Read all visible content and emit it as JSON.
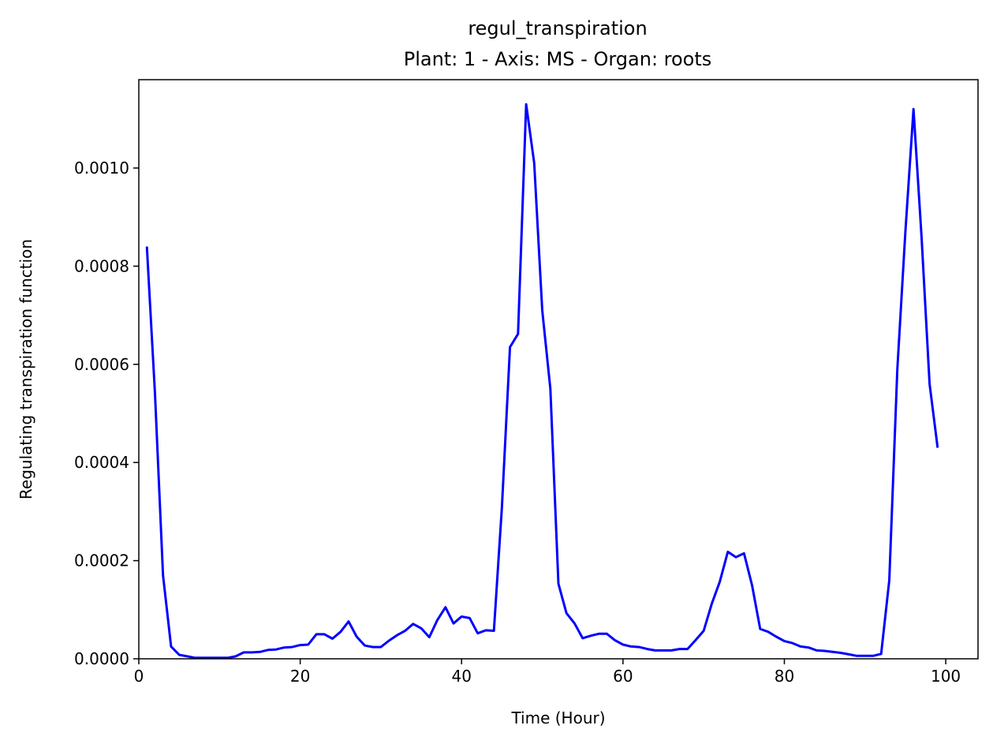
{
  "chart_data": {
    "type": "line",
    "title": "regul_transpiration",
    "subtitle": "Plant: 1 - Axis: MS - Organ: roots",
    "xlabel": "Time (Hour)",
    "ylabel": "Regulating transpiration function",
    "xlim": [
      0,
      104
    ],
    "ylim": [
      0,
      0.00118
    ],
    "xticks": [
      0,
      20,
      40,
      60,
      80,
      100
    ],
    "xtick_labels": [
      "0",
      "20",
      "40",
      "60",
      "80",
      "100"
    ],
    "yticks": [
      0,
      0.0002,
      0.0004,
      0.0006,
      0.0008,
      0.001
    ],
    "ytick_labels": [
      "0.0000",
      "0.0002",
      "0.0004",
      "0.0006",
      "0.0008",
      "0.0010"
    ],
    "grid": false,
    "line_color": "#0000ff",
    "series": [
      {
        "x": [
          1,
          2,
          3,
          4,
          5,
          6,
          7,
          8,
          9,
          10,
          11,
          12,
          13,
          14,
          15,
          16,
          17,
          18,
          19,
          20,
          21,
          22,
          23,
          24,
          25,
          26,
          27,
          28,
          29,
          30,
          31,
          32,
          33,
          34,
          35,
          36,
          37,
          38,
          39,
          40,
          41,
          42,
          43,
          44,
          45,
          46,
          47,
          48,
          49,
          50,
          51,
          52,
          53,
          54,
          55,
          56,
          57,
          58,
          59,
          60,
          61,
          62,
          63,
          64,
          65,
          66,
          67,
          68,
          69,
          70,
          71,
          72,
          73,
          74,
          75,
          76,
          77,
          78,
          79,
          80,
          81,
          82,
          83,
          84,
          85,
          86,
          87,
          88,
          89,
          90,
          91,
          92,
          93,
          94,
          95,
          96,
          97,
          98,
          99
        ],
        "y": [
          0.00084,
          0.00054,
          0.00017,
          2.5e-05,
          8e-06,
          5e-06,
          2e-06,
          2e-06,
          2e-06,
          2e-06,
          2e-06,
          5e-06,
          1.3e-05,
          1.3e-05,
          1.4e-05,
          1.8e-05,
          1.9e-05,
          2.3e-05,
          2.4e-05,
          2.8e-05,
          2.9e-05,
          5e-05,
          5e-05,
          4.1e-05,
          5.5e-05,
          7.6e-05,
          4.5e-05,
          2.7e-05,
          2.4e-05,
          2.4e-05,
          3.7e-05,
          4.8e-05,
          5.7e-05,
          7.1e-05,
          6.2e-05,
          4.4e-05,
          7.9e-05,
          0.000105,
          7.2e-05,
          8.6e-05,
          8.3e-05,
          5.2e-05,
          5.8e-05,
          5.7e-05,
          0.00031,
          0.000635,
          0.000662,
          0.00113,
          0.00101,
          0.00071,
          0.00055,
          0.000153,
          9.3e-05,
          7.2e-05,
          4.2e-05,
          4.7e-05,
          5.1e-05,
          5.1e-05,
          3.8e-05,
          2.9e-05,
          2.5e-05,
          2.4e-05,
          2e-05,
          1.7e-05,
          1.7e-05,
          1.7e-05,
          2e-05,
          2e-05,
          3.8e-05,
          5.7e-05,
          0.000112,
          0.000157,
          0.000218,
          0.000207,
          0.000215,
          0.00015,
          6.1e-05,
          5.5e-05,
          4.5e-05,
          3.6e-05,
          3.2e-05,
          2.5e-05,
          2.3e-05,
          1.7e-05,
          1.6e-05,
          1.4e-05,
          1.2e-05,
          9e-06,
          6e-06,
          6e-06,
          6e-06,
          1e-05,
          0.00016,
          0.00059,
          0.00087,
          0.00112,
          0.00086,
          0.00056,
          0.00043
        ]
      }
    ]
  }
}
